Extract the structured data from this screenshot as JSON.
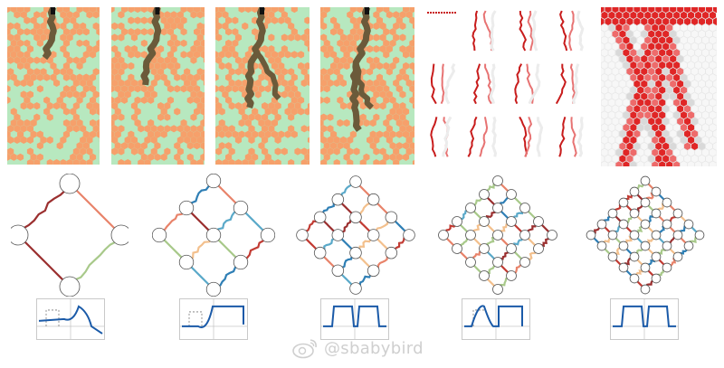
{
  "watermark": {
    "text": "@sbabybird"
  },
  "colors": {
    "hex_background": "#b7e8bf",
    "hex_occupied": "#f6a06b",
    "hex_path": "#6b5a3a",
    "sim_red": "#c81c1c",
    "sim_light": "#ececec",
    "heat_red": "#e02626",
    "lattice_palette": [
      "#c23b33",
      "#e8836a",
      "#f3c08d",
      "#a8c98a",
      "#5aa9c9",
      "#2f7fb5",
      "#9b2f2f"
    ],
    "wave_line": "#1a5aa8"
  },
  "top_row": {
    "hex_panels": [
      {
        "name": "hex-panel-1",
        "path_length": 0.35
      },
      {
        "name": "hex-panel-2",
        "path_length": 0.5
      },
      {
        "name": "hex-panel-3",
        "path_length": 0.65
      },
      {
        "name": "hex-panel-4",
        "path_length": 0.8
      }
    ],
    "simulation_grid": {
      "rows": 3,
      "cols": 4
    },
    "heatmap": {
      "name": "path-probability-heatmap"
    }
  },
  "bottom_row": {
    "lattices": [
      {
        "name": "lattice-1",
        "n": 1
      },
      {
        "name": "lattice-2",
        "n": 2
      },
      {
        "name": "lattice-3",
        "n": 3
      },
      {
        "name": "lattice-4",
        "n": 4
      },
      {
        "name": "lattice-5",
        "n": 5
      }
    ],
    "wavefunctions": [
      {
        "name": "wavefunction-1",
        "shape": "peak"
      },
      {
        "name": "wavefunction-2",
        "shape": "step"
      },
      {
        "name": "wavefunction-3",
        "shape": "box"
      },
      {
        "name": "wavefunction-4",
        "shape": "box-peak"
      },
      {
        "name": "wavefunction-5",
        "shape": "box"
      }
    ]
  }
}
